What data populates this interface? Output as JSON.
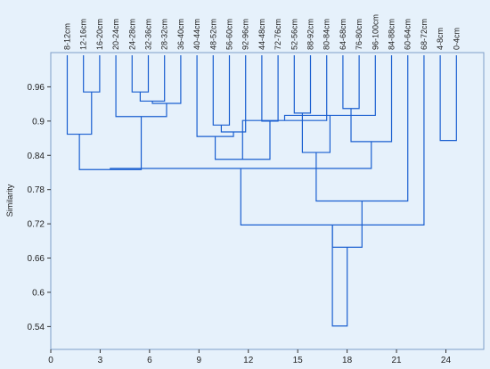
{
  "chart_data": {
    "type": "dendrogram",
    "title": "",
    "xlabel": "",
    "ylabel": "Similarity",
    "xlim": [
      0,
      26.3
    ],
    "ylim": [
      0.5,
      1.02
    ],
    "xticks": [
      0,
      3,
      6,
      9,
      12,
      15,
      18,
      21,
      24
    ],
    "yticks": [
      0.54,
      0.6,
      0.66,
      0.72,
      0.78,
      0.84,
      0.9,
      0.96
    ],
    "grid": false,
    "line_color": "#1a5fd0",
    "leaf_labels": [
      "8-12cm",
      "12-16cm",
      "16-20cm",
      "20-24cm",
      "24-28cm",
      "32-36cm",
      "28-32cm",
      "36-40cm",
      "40-44cm",
      "48-52cm",
      "56-60cm",
      "92-96cm",
      "44-48cm",
      "72-76cm",
      "52-56cm",
      "88-92cm",
      "80-84cm",
      "64-68cm",
      "76-80cm",
      "96-100cm",
      "84-88cm",
      "60-64cm",
      "68-72cm",
      "4-8cm",
      "0-4cm"
    ],
    "merges": [
      {
        "left": 2,
        "right": 3,
        "similarity": 0.951
      },
      {
        "left": 1,
        "right": 26,
        "similarity": 0.877
      },
      {
        "left": 5,
        "right": 6,
        "similarity": 0.951
      },
      {
        "left": 28,
        "right": 7,
        "similarity": 0.935
      },
      {
        "left": 29,
        "right": 8,
        "similarity": 0.931
      },
      {
        "left": 4,
        "right": 30,
        "similarity": 0.908
      },
      {
        "left": 27,
        "right": 31,
        "similarity": 0.815
      },
      {
        "left": 10,
        "right": 11,
        "similarity": 0.893
      },
      {
        "left": 33,
        "right": 12,
        "similarity": 0.881
      },
      {
        "left": 9,
        "right": 34,
        "similarity": 0.873
      },
      {
        "left": 13,
        "right": 14,
        "similarity": 0.9
      },
      {
        "left": 35,
        "right": 36,
        "similarity": 0.833
      },
      {
        "left": 15,
        "right": 16,
        "similarity": 0.914
      },
      {
        "left": 37,
        "right": 17,
        "similarity": 0.901
      },
      {
        "left": 18,
        "right": 19,
        "similarity": 0.922
      },
      {
        "left": 39,
        "right": 20,
        "similarity": 0.91
      },
      {
        "left": 40,
        "right": 21,
        "similarity": 0.864
      },
      {
        "left": 38,
        "right": 41,
        "similarity": 0.845
      },
      {
        "left": 32,
        "right": 42,
        "similarity": 0.817
      },
      {
        "left": 43,
        "right": 22,
        "similarity": 0.76
      },
      {
        "left": 44,
        "right": 23,
        "similarity": 0.718
      },
      {
        "left": 45,
        "right": 46,
        "similarity": 0.679
      },
      {
        "left": 24,
        "right": 25,
        "similarity": 0.866
      },
      {
        "left": 46,
        "right": 47,
        "similarity": 0.541
      }
    ]
  }
}
